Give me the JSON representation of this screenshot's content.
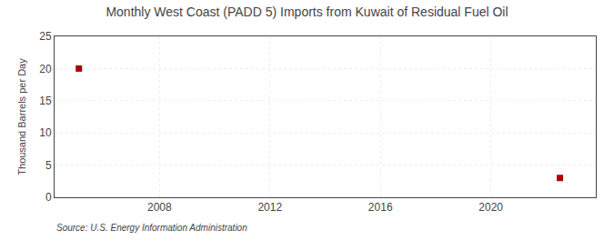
{
  "chart_data": {
    "type": "scatter",
    "title": "Monthly West Coast (PADD 5) Imports from Kuwait of Residual Fuel Oil",
    "ylabel": "Thousand Barrels per Day",
    "source": "Source: U.S. Energy Information Administration",
    "x": [
      2005.08,
      2022.5
    ],
    "values": [
      20.0,
      3.0
    ],
    "color": "#aa0000",
    "marker": "square",
    "xlim": [
      2004.2,
      2023.8
    ],
    "ylim": [
      0,
      25
    ],
    "xticks": [
      2008,
      2012,
      2016,
      2020
    ],
    "yticks": [
      0,
      5,
      10,
      15,
      20,
      25
    ],
    "grid": true
  }
}
